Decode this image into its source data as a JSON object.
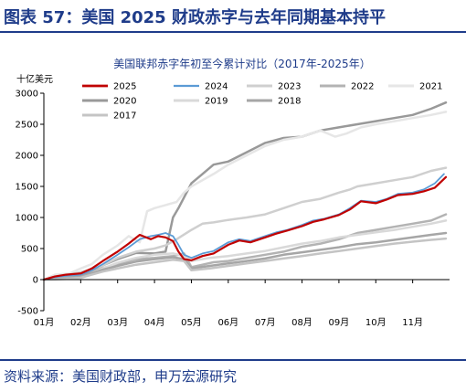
{
  "header": {
    "title": "图表 57：美国 2025 财政赤字与去年同期基本持平"
  },
  "footer": {
    "source": "资料来源：美国财政部，申万宏源研究"
  },
  "chart_data": {
    "type": "line",
    "title": "美国联邦赤字年初至今累计对比（2017年-2025年）",
    "ylabel": "十亿美元",
    "ylim": [
      -500,
      3000
    ],
    "yticks": [
      -500,
      0,
      500,
      1000,
      1500,
      2000,
      2500,
      3000
    ],
    "xlim": [
      0,
      11
    ],
    "xtick_labels": [
      "01月",
      "02月",
      "03月",
      "04月",
      "05月",
      "06月",
      "07月",
      "08月",
      "09月",
      "10月",
      "11月"
    ],
    "grid": false,
    "legend_position": "top",
    "series": [
      {
        "name": "2020",
        "color": "#999999",
        "width": 2.5,
        "points": [
          [
            0,
            0
          ],
          [
            0.3,
            30
          ],
          [
            0.6,
            60
          ],
          [
            1,
            50
          ],
          [
            1.3,
            130
          ],
          [
            1.6,
            230
          ],
          [
            2,
            330
          ],
          [
            2.5,
            430
          ],
          [
            3,
            420
          ],
          [
            3.3,
            450
          ],
          [
            3.5,
            1000
          ],
          [
            3.65,
            1150
          ],
          [
            4,
            1550
          ],
          [
            4.3,
            1700
          ],
          [
            4.6,
            1850
          ],
          [
            5,
            1900
          ],
          [
            5.5,
            2050
          ],
          [
            6,
            2200
          ],
          [
            6.5,
            2280
          ],
          [
            7,
            2300
          ],
          [
            7.5,
            2400
          ],
          [
            8,
            2450
          ],
          [
            8.5,
            2500
          ],
          [
            9,
            2550
          ],
          [
            9.5,
            2600
          ],
          [
            10,
            2650
          ],
          [
            10.5,
            2750
          ],
          [
            10.9,
            2850
          ]
        ]
      },
      {
        "name": "2021",
        "color": "#e6e6e6",
        "width": 2.5,
        "points": [
          [
            0,
            0
          ],
          [
            0.3,
            80
          ],
          [
            0.7,
            100
          ],
          [
            1,
            180
          ],
          [
            1.3,
            250
          ],
          [
            1.6,
            400
          ],
          [
            2,
            550
          ],
          [
            2.3,
            700
          ],
          [
            2.6,
            600
          ],
          [
            2.8,
            1100
          ],
          [
            3,
            1150
          ],
          [
            3.3,
            1200
          ],
          [
            3.6,
            1250
          ],
          [
            3.8,
            1400
          ],
          [
            4,
            1500
          ],
          [
            4.3,
            1600
          ],
          [
            4.6,
            1700
          ],
          [
            5,
            1850
          ],
          [
            5.5,
            2000
          ],
          [
            6,
            2150
          ],
          [
            6.5,
            2250
          ],
          [
            7,
            2300
          ],
          [
            7.5,
            2400
          ],
          [
            7.9,
            2300
          ],
          [
            8.2,
            2350
          ],
          [
            8.6,
            2450
          ],
          [
            9,
            2500
          ],
          [
            9.5,
            2550
          ],
          [
            10,
            2600
          ],
          [
            10.5,
            2650
          ],
          [
            10.9,
            2700
          ]
        ]
      },
      {
        "name": "2023",
        "color": "#cfcfcf",
        "width": 2.5,
        "points": [
          [
            0,
            0
          ],
          [
            0.3,
            40
          ],
          [
            0.6,
            70
          ],
          [
            1,
            120
          ],
          [
            1.5,
            200
          ],
          [
            2,
            350
          ],
          [
            2.5,
            450
          ],
          [
            3,
            500
          ],
          [
            3.3,
            550
          ],
          [
            3.6,
            650
          ],
          [
            4,
            800
          ],
          [
            4.3,
            900
          ],
          [
            4.6,
            920
          ],
          [
            5,
            960
          ],
          [
            5.5,
            1000
          ],
          [
            6,
            1050
          ],
          [
            6.5,
            1150
          ],
          [
            7,
            1250
          ],
          [
            7.5,
            1300
          ],
          [
            8,
            1400
          ],
          [
            8.3,
            1450
          ],
          [
            8.5,
            1500
          ],
          [
            9,
            1550
          ],
          [
            9.5,
            1600
          ],
          [
            10,
            1650
          ],
          [
            10.5,
            1750
          ],
          [
            10.9,
            1800
          ]
        ]
      },
      {
        "name": "2022",
        "color": "#b3b3b3",
        "width": 2.5,
        "points": [
          [
            0,
            0
          ],
          [
            0.3,
            30
          ],
          [
            0.6,
            50
          ],
          [
            1,
            100
          ],
          [
            1.5,
            170
          ],
          [
            2,
            250
          ],
          [
            2.5,
            330
          ],
          [
            3,
            350
          ],
          [
            3.5,
            380
          ],
          [
            3.8,
            420
          ],
          [
            4,
            200
          ],
          [
            4.3,
            240
          ],
          [
            4.6,
            280
          ],
          [
            5,
            300
          ],
          [
            5.5,
            350
          ],
          [
            6,
            400
          ],
          [
            6.5,
            450
          ],
          [
            7,
            530
          ],
          [
            7.5,
            580
          ],
          [
            8,
            650
          ],
          [
            8.5,
            750
          ],
          [
            9,
            800
          ],
          [
            9.5,
            850
          ],
          [
            10,
            900
          ],
          [
            10.5,
            950
          ],
          [
            10.9,
            1050
          ]
        ]
      },
      {
        "name": "2019",
        "color": "#d9d9d9",
        "width": 2.5,
        "points": [
          [
            0,
            0
          ],
          [
            0.3,
            10
          ],
          [
            0.6,
            20
          ],
          [
            1,
            40
          ],
          [
            1.3,
            100
          ],
          [
            1.6,
            180
          ],
          [
            2,
            270
          ],
          [
            2.5,
            350
          ],
          [
            3,
            400
          ],
          [
            3.5,
            420
          ],
          [
            3.8,
            380
          ],
          [
            4,
            300
          ],
          [
            4.5,
            350
          ],
          [
            5,
            380
          ],
          [
            5.5,
            420
          ],
          [
            6,
            460
          ],
          [
            6.5,
            520
          ],
          [
            7,
            580
          ],
          [
            7.5,
            620
          ],
          [
            8,
            680
          ],
          [
            8.5,
            720
          ],
          [
            9,
            760
          ],
          [
            9.5,
            800
          ],
          [
            10,
            850
          ],
          [
            10.5,
            900
          ],
          [
            10.9,
            950
          ]
        ]
      },
      {
        "name": "2018",
        "color": "#a6a6a6",
        "width": 2.5,
        "points": [
          [
            0,
            0
          ],
          [
            0.3,
            10
          ],
          [
            0.6,
            20
          ],
          [
            1,
            50
          ],
          [
            1.3,
            100
          ],
          [
            1.6,
            160
          ],
          [
            2,
            220
          ],
          [
            2.5,
            290
          ],
          [
            3,
            330
          ],
          [
            3.5,
            360
          ],
          [
            3.8,
            330
          ],
          [
            4,
            180
          ],
          [
            4.5,
            220
          ],
          [
            5,
            260
          ],
          [
            5.5,
            300
          ],
          [
            6,
            340
          ],
          [
            6.5,
            400
          ],
          [
            7,
            440
          ],
          [
            7.5,
            480
          ],
          [
            8,
            520
          ],
          [
            8.5,
            570
          ],
          [
            9,
            600
          ],
          [
            9.5,
            640
          ],
          [
            10,
            680
          ],
          [
            10.5,
            720
          ],
          [
            10.9,
            750
          ]
        ]
      },
      {
        "name": "2017",
        "color": "#c4c4c4",
        "width": 2.5,
        "points": [
          [
            0,
            0
          ],
          [
            0.3,
            5
          ],
          [
            0.6,
            10
          ],
          [
            1,
            30
          ],
          [
            1.3,
            80
          ],
          [
            1.6,
            130
          ],
          [
            2,
            180
          ],
          [
            2.5,
            240
          ],
          [
            3,
            280
          ],
          [
            3.5,
            320
          ],
          [
            3.8,
            300
          ],
          [
            4,
            150
          ],
          [
            4.5,
            180
          ],
          [
            5,
            220
          ],
          [
            5.5,
            260
          ],
          [
            6,
            300
          ],
          [
            6.5,
            340
          ],
          [
            7,
            380
          ],
          [
            7.5,
            420
          ],
          [
            8,
            460
          ],
          [
            8.5,
            500
          ],
          [
            9,
            540
          ],
          [
            9.5,
            580
          ],
          [
            10,
            610
          ],
          [
            10.5,
            640
          ],
          [
            10.9,
            660
          ]
        ]
      },
      {
        "name": "2024",
        "color": "#5b9bd5",
        "width": 1.8,
        "points": [
          [
            0,
            0
          ],
          [
            0.3,
            40
          ],
          [
            0.6,
            60
          ],
          [
            1,
            80
          ],
          [
            1.3,
            150
          ],
          [
            1.6,
            250
          ],
          [
            2,
            400
          ],
          [
            2.3,
            520
          ],
          [
            2.6,
            650
          ],
          [
            2.9,
            700
          ],
          [
            3.1,
            720
          ],
          [
            3.3,
            750
          ],
          [
            3.5,
            700
          ],
          [
            3.65,
            560
          ],
          [
            3.8,
            400
          ],
          [
            4,
            350
          ],
          [
            4.3,
            420
          ],
          [
            4.6,
            460
          ],
          [
            5,
            600
          ],
          [
            5.3,
            650
          ],
          [
            5.6,
            620
          ],
          [
            6,
            700
          ],
          [
            6.3,
            760
          ],
          [
            6.6,
            800
          ],
          [
            7,
            880
          ],
          [
            7.3,
            950
          ],
          [
            7.6,
            980
          ],
          [
            8,
            1050
          ],
          [
            8.3,
            1150
          ],
          [
            8.6,
            1270
          ],
          [
            9,
            1250
          ],
          [
            9.3,
            1300
          ],
          [
            9.6,
            1380
          ],
          [
            10,
            1400
          ],
          [
            10.3,
            1450
          ],
          [
            10.6,
            1550
          ],
          [
            10.85,
            1700
          ]
        ]
      },
      {
        "name": "2025",
        "color": "#c00000",
        "width": 2.2,
        "points": [
          [
            0,
            0
          ],
          [
            0.3,
            50
          ],
          [
            0.6,
            80
          ],
          [
            1,
            100
          ],
          [
            1.3,
            180
          ],
          [
            1.6,
            300
          ],
          [
            2,
            450
          ],
          [
            2.3,
            580
          ],
          [
            2.6,
            720
          ],
          [
            2.9,
            650
          ],
          [
            3.1,
            700
          ],
          [
            3.3,
            680
          ],
          [
            3.5,
            620
          ],
          [
            3.65,
            450
          ],
          [
            3.8,
            330
          ],
          [
            4,
            310
          ],
          [
            4.3,
            380
          ],
          [
            4.6,
            420
          ],
          [
            5,
            560
          ],
          [
            5.3,
            630
          ],
          [
            5.6,
            600
          ],
          [
            6,
            680
          ],
          [
            6.3,
            740
          ],
          [
            6.6,
            790
          ],
          [
            7,
            860
          ],
          [
            7.3,
            930
          ],
          [
            7.6,
            970
          ],
          [
            8,
            1040
          ],
          [
            8.3,
            1130
          ],
          [
            8.6,
            1260
          ],
          [
            9,
            1230
          ],
          [
            9.3,
            1290
          ],
          [
            9.6,
            1360
          ],
          [
            10,
            1380
          ],
          [
            10.3,
            1420
          ],
          [
            10.6,
            1480
          ],
          [
            10.9,
            1650
          ]
        ]
      }
    ],
    "legend": [
      {
        "series": "2025",
        "row": 0,
        "col": 0
      },
      {
        "series": "2024",
        "row": 0,
        "col": 1
      },
      {
        "series": "2023",
        "row": 0,
        "col": 2
      },
      {
        "series": "2022",
        "row": 0,
        "col": 3
      },
      {
        "series": "2021",
        "row": 0,
        "col": 4
      },
      {
        "series": "2020",
        "row": 1,
        "col": 0
      },
      {
        "series": "2019",
        "row": 1,
        "col": 1
      },
      {
        "series": "2018",
        "row": 1,
        "col": 2
      },
      {
        "series": "2017",
        "row": 2,
        "col": 0
      }
    ]
  }
}
